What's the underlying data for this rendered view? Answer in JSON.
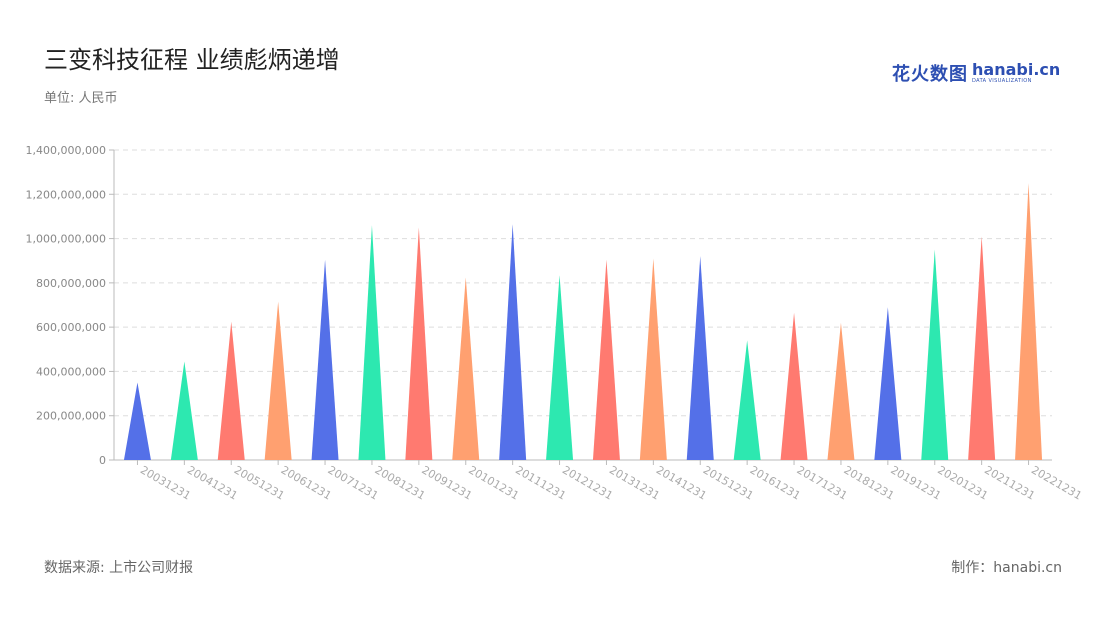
{
  "header": {
    "title": "三变科技征程 业绩彪炳递增",
    "unit": "单位: 人民币"
  },
  "brand": {
    "name_cn": "花火数图",
    "name_en": "hanabi.cn",
    "tagline": "DATA VISUALIZATION"
  },
  "footer": {
    "source": "数据来源: 上市公司财报",
    "credit": "制作：hanabi.cn"
  },
  "colors": {
    "palette": [
      "#5470e8",
      "#2de8b0",
      "#ff7a70",
      "#ffa070"
    ],
    "grid": "#dddddd",
    "axis": "#bbbbbb",
    "tick_text": "#888888",
    "category_text": "#aaaaaa"
  },
  "chart_data": {
    "type": "bar",
    "bar_shape": "triangle",
    "categories": [
      "20031231",
      "20041231",
      "20051231",
      "20061231",
      "20071231",
      "20081231",
      "20091231",
      "20101231",
      "20111231",
      "20121231",
      "20131231",
      "20141231",
      "20151231",
      "20161231",
      "20171231",
      "20181231",
      "20191231",
      "20201231",
      "20211231",
      "20221231"
    ],
    "values": [
      350000000,
      445000000,
      625000000,
      715000000,
      905000000,
      1060000000,
      1050000000,
      825000000,
      1065000000,
      835000000,
      905000000,
      910000000,
      920000000,
      540000000,
      665000000,
      620000000,
      690000000,
      950000000,
      1010000000,
      1250000000
    ],
    "ylim": [
      0,
      1400000000
    ],
    "yticks": [
      0,
      200000000,
      400000000,
      600000000,
      800000000,
      1000000000,
      1200000000,
      1400000000
    ],
    "ytick_labels": [
      "0",
      "200,000,000",
      "400,000,000",
      "600,000,000",
      "800,000,000",
      "1,000,000,000",
      "1,200,000,000",
      "1,400,000,000"
    ],
    "grid": true,
    "legend": "none"
  }
}
